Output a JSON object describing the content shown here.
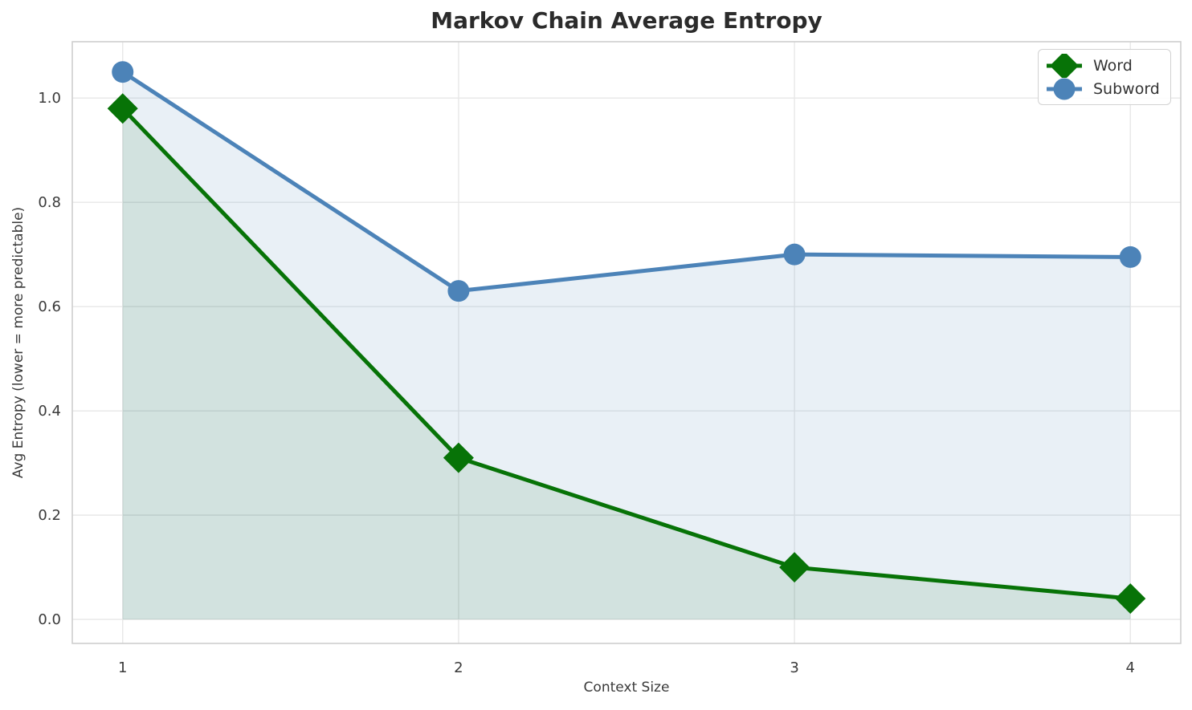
{
  "chart_data": {
    "type": "line",
    "title": "Markov Chain Average Entropy",
    "xlabel": "Context Size",
    "ylabel": "Avg Entropy (lower = more predictable)",
    "x": [
      1,
      2,
      3,
      4
    ],
    "series": [
      {
        "name": "Word",
        "values": [
          0.98,
          0.31,
          0.1,
          0.04
        ],
        "color": "#077307",
        "fill": "rgba(0,100,0,0.10)",
        "marker": "diamond"
      },
      {
        "name": "Subword",
        "values": [
          1.05,
          0.63,
          0.7,
          0.695
        ],
        "color": "#4c83b8",
        "fill": "rgba(70,130,180,0.12)",
        "marker": "circle"
      }
    ],
    "x_ticks": [
      "1",
      "2",
      "3",
      "4"
    ],
    "y_ticks": [
      "0.0",
      "0.2",
      "0.4",
      "0.6",
      "0.8",
      "1.0"
    ],
    "xlim": [
      0.85,
      4.15
    ],
    "ylim": [
      -0.046,
      1.108
    ],
    "fill_baseline": 0,
    "grid": true,
    "grid_color": "#e7e7e7",
    "spine_color": "#cfcfcf",
    "tick_color": "#3a3a3a",
    "title_color": "#2b2b2b",
    "label_color": "#3a3a3a",
    "legend_position": "upper right"
  }
}
